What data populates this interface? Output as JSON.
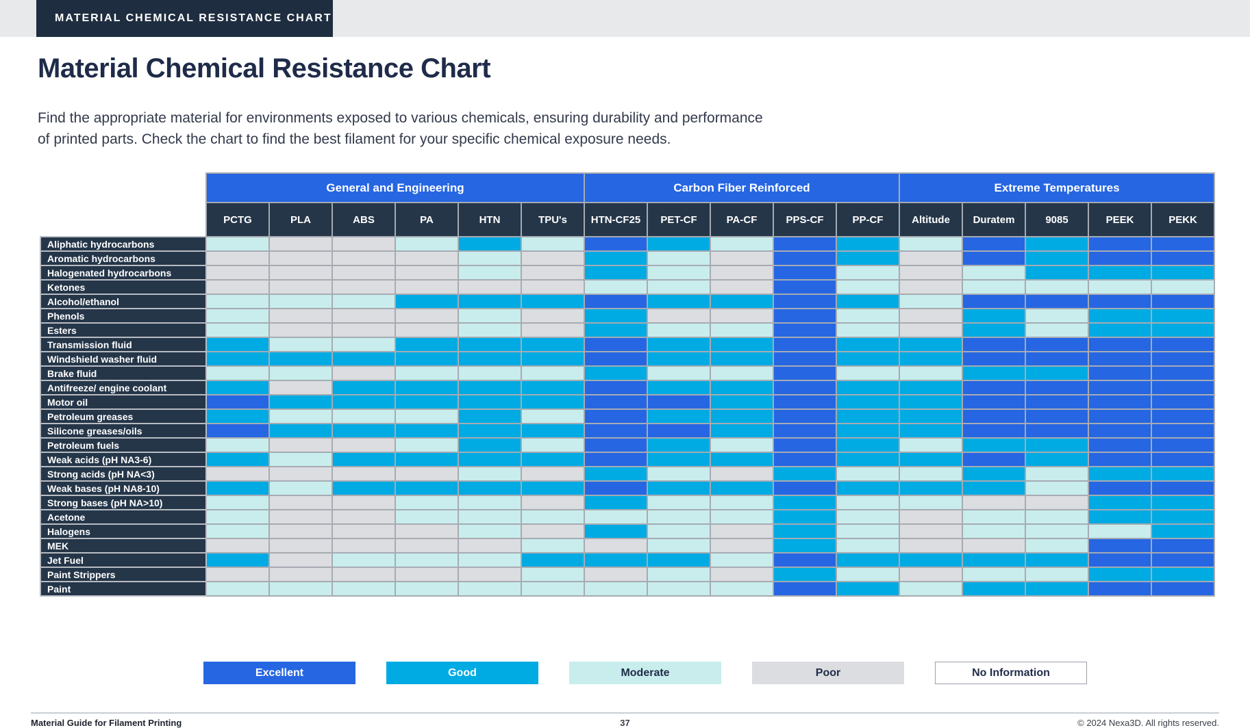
{
  "banner": {
    "label": "MATERIAL CHEMICAL RESISTANCE CHART"
  },
  "header": {
    "title": "Material Chemical Resistance Chart",
    "subtitle_line1": "Find the appropriate material for environments exposed to various chemicals, ensuring durability and performance",
    "subtitle_line2": "of printed parts. Check the chart to find the best filament for your specific chemical exposure needs."
  },
  "chart_data": {
    "type": "heatmap",
    "title": "Material Chemical Resistance Chart",
    "legend_position": "bottom",
    "column_groups": [
      {
        "label": "General and Engineering",
        "columns": [
          "PCTG",
          "PLA",
          "ABS",
          "PA",
          "HTN",
          "TPU's"
        ]
      },
      {
        "label": "Carbon Fiber Reinforced",
        "columns": [
          "HTN-CF25",
          "PET-CF",
          "PA-CF",
          "PPS-CF",
          "PP-CF"
        ]
      },
      {
        "label": "Extreme Temperatures",
        "columns": [
          "Altitude",
          "Duratem",
          "9085",
          "PEEK",
          "PEKK"
        ]
      }
    ],
    "columns": [
      "PCTG",
      "PLA",
      "ABS",
      "PA",
      "HTN",
      "TPU's",
      "HTN-CF25",
      "PET-CF",
      "PA-CF",
      "PPS-CF",
      "PP-CF",
      "Altitude",
      "Duratem",
      "9085",
      "PEEK",
      "PEKK"
    ],
    "rows": [
      "Aliphatic hydrocarbons",
      "Aromatic hydrocarbons",
      "Halogenated hydrocarbons",
      "Ketones",
      "Alcohol/ethanol",
      "Phenols",
      "Esters",
      "Transmission fluid",
      "Windshield washer fluid",
      "Brake fluid",
      "Antifreeze/ engine coolant",
      "Motor oil",
      "Petroleum greases",
      "Silicone greases/oils",
      "Petroleum fuels",
      "Weak acids (pH NA3-6)",
      "Strong acids (pH NA<3)",
      "Weak bases (pH NA8-10)",
      "Strong bases (pH NA>10)",
      "Acetone",
      "Halogens",
      "MEK",
      "Jet Fuel",
      "Paint Strippers",
      "Paint"
    ],
    "values": [
      [
        "M",
        "P",
        "P",
        "M",
        "G",
        "M",
        "E",
        "G",
        "M",
        "E",
        "G",
        "M",
        "E",
        "G",
        "E",
        "E"
      ],
      [
        "P",
        "P",
        "P",
        "P",
        "M",
        "P",
        "G",
        "M",
        "P",
        "E",
        "G",
        "P",
        "E",
        "G",
        "E",
        "E"
      ],
      [
        "P",
        "P",
        "P",
        "P",
        "M",
        "P",
        "G",
        "M",
        "P",
        "E",
        "M",
        "P",
        "M",
        "G",
        "G",
        "G"
      ],
      [
        "P",
        "P",
        "P",
        "P",
        "P",
        "P",
        "M",
        "M",
        "P",
        "E",
        "M",
        "P",
        "M",
        "M",
        "M",
        "M"
      ],
      [
        "M",
        "M",
        "M",
        "G",
        "G",
        "G",
        "E",
        "G",
        "G",
        "E",
        "G",
        "M",
        "E",
        "E",
        "E",
        "E"
      ],
      [
        "M",
        "P",
        "P",
        "P",
        "M",
        "P",
        "G",
        "P",
        "P",
        "E",
        "M",
        "P",
        "G",
        "M",
        "G",
        "G"
      ],
      [
        "M",
        "P",
        "P",
        "P",
        "M",
        "P",
        "G",
        "M",
        "M",
        "E",
        "M",
        "P",
        "G",
        "M",
        "G",
        "G"
      ],
      [
        "G",
        "M",
        "M",
        "G",
        "G",
        "G",
        "E",
        "G",
        "G",
        "E",
        "G",
        "G",
        "E",
        "E",
        "E",
        "E"
      ],
      [
        "G",
        "G",
        "G",
        "G",
        "G",
        "G",
        "E",
        "G",
        "G",
        "E",
        "G",
        "G",
        "E",
        "E",
        "E",
        "E"
      ],
      [
        "M",
        "M",
        "P",
        "M",
        "M",
        "M",
        "G",
        "M",
        "M",
        "E",
        "M",
        "M",
        "G",
        "G",
        "E",
        "E"
      ],
      [
        "G",
        "P",
        "G",
        "G",
        "G",
        "G",
        "E",
        "G",
        "G",
        "E",
        "G",
        "G",
        "E",
        "E",
        "E",
        "E"
      ],
      [
        "E",
        "G",
        "G",
        "G",
        "G",
        "G",
        "E",
        "E",
        "G",
        "E",
        "G",
        "G",
        "E",
        "E",
        "E",
        "E"
      ],
      [
        "G",
        "M",
        "M",
        "M",
        "G",
        "M",
        "E",
        "G",
        "G",
        "E",
        "G",
        "G",
        "E",
        "E",
        "E",
        "E"
      ],
      [
        "E",
        "G",
        "G",
        "G",
        "G",
        "G",
        "E",
        "E",
        "G",
        "E",
        "G",
        "G",
        "E",
        "E",
        "E",
        "E"
      ],
      [
        "M",
        "P",
        "P",
        "M",
        "G",
        "M",
        "E",
        "G",
        "M",
        "E",
        "G",
        "M",
        "G",
        "G",
        "E",
        "E"
      ],
      [
        "G",
        "M",
        "G",
        "G",
        "G",
        "G",
        "E",
        "G",
        "G",
        "E",
        "G",
        "G",
        "E",
        "G",
        "E",
        "E"
      ],
      [
        "P",
        "P",
        "P",
        "P",
        "M",
        "P",
        "G",
        "M",
        "P",
        "G",
        "M",
        "M",
        "G",
        "M",
        "G",
        "G"
      ],
      [
        "G",
        "M",
        "G",
        "G",
        "G",
        "G",
        "E",
        "G",
        "G",
        "E",
        "G",
        "G",
        "G",
        "M",
        "E",
        "E"
      ],
      [
        "M",
        "P",
        "P",
        "M",
        "M",
        "P",
        "G",
        "M",
        "M",
        "G",
        "M",
        "M",
        "P",
        "P",
        "G",
        "G"
      ],
      [
        "M",
        "P",
        "P",
        "M",
        "M",
        "M",
        "M",
        "M",
        "M",
        "G",
        "M",
        "P",
        "M",
        "M",
        "G",
        "G"
      ],
      [
        "M",
        "P",
        "P",
        "P",
        "M",
        "P",
        "G",
        "M",
        "P",
        "G",
        "M",
        "P",
        "M",
        "M",
        "M",
        "G"
      ],
      [
        "P",
        "P",
        "P",
        "P",
        "P",
        "M",
        "P",
        "M",
        "P",
        "G",
        "M",
        "P",
        "P",
        "M",
        "E",
        "E"
      ],
      [
        "G",
        "P",
        "M",
        "M",
        "M",
        "G",
        "G",
        "G",
        "M",
        "E",
        "G",
        "G",
        "G",
        "G",
        "E",
        "E"
      ],
      [
        "P",
        "P",
        "P",
        "P",
        "P",
        "M",
        "P",
        "M",
        "P",
        "G",
        "M",
        "P",
        "M",
        "M",
        "G",
        "G"
      ],
      [
        "M",
        "M",
        "M",
        "M",
        "M",
        "M",
        "M",
        "M",
        "M",
        "E",
        "G",
        "M",
        "G",
        "G",
        "E",
        "E"
      ]
    ],
    "scale": {
      "E": "Excellent",
      "G": "Good",
      "M": "Moderate",
      "P": "Poor",
      "N": "No Information"
    },
    "colors": {
      "E": "#2666E2",
      "G": "#00ABE3",
      "M": "#C8EDEC",
      "P": "#DCDDE0",
      "N": "#FFFFFF"
    }
  },
  "legend": [
    {
      "key": "E",
      "label": "Excellent",
      "bg": "#2666E2",
      "fg": "#FFFFFF",
      "border": ""
    },
    {
      "key": "G",
      "label": "Good",
      "bg": "#00ABE3",
      "fg": "#FFFFFF",
      "border": ""
    },
    {
      "key": "M",
      "label": "Moderate",
      "bg": "#C8EDEC",
      "fg": "#1F2B49",
      "border": ""
    },
    {
      "key": "P",
      "label": "Poor",
      "bg": "#DCDDE0",
      "fg": "#1F2B49",
      "border": ""
    },
    {
      "key": "N",
      "label": "No Information",
      "bg": "#FFFFFF",
      "fg": "#1F2B49",
      "border": "#9BA0A8"
    }
  ],
  "footer": {
    "left": "Material Guide for Filament  Printing",
    "page": "37",
    "right": "© 2024 Nexa3D. All rights reserved."
  }
}
